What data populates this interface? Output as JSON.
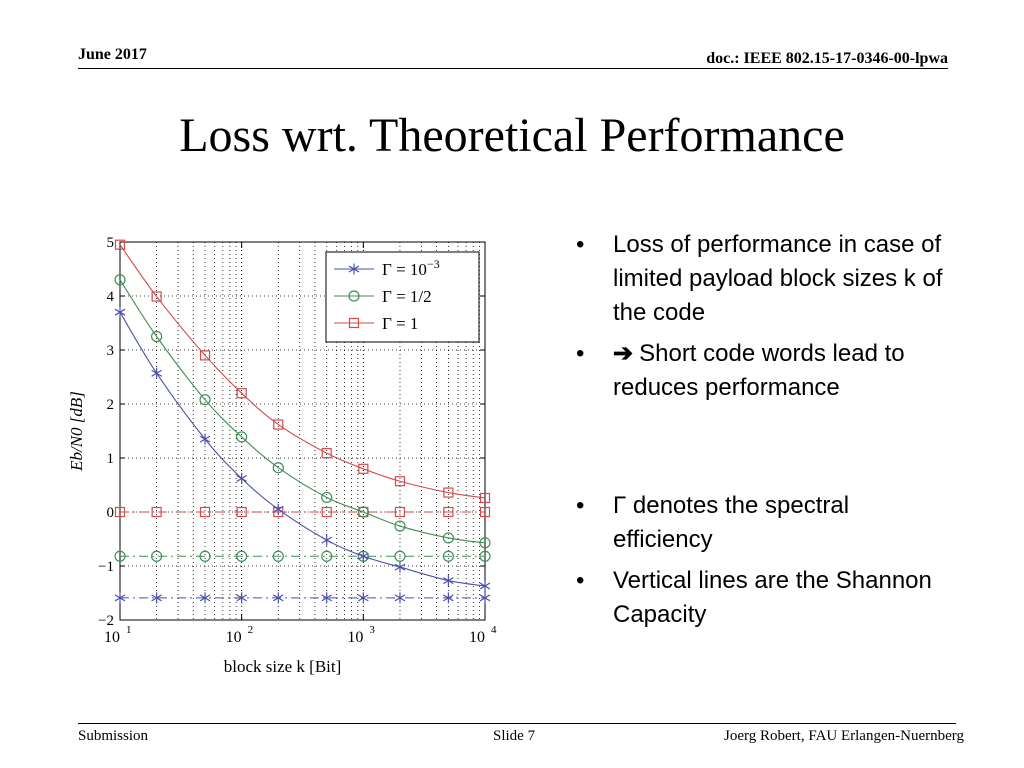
{
  "header": {
    "date": "June 2017",
    "doc": "doc.: IEEE 802.15-17-0346-00-lpwa"
  },
  "slide": {
    "title": "Loss wrt. Theoretical Performance",
    "bullets": [
      {
        "text": "Loss of performance in case of limited payload block sizes k of the code"
      },
      {
        "arrow": "➔",
        "text": "Short code words lead to reduces performance"
      },
      {
        "text": "Γ denotes  the spectral efficiency"
      },
      {
        "text": "Vertical lines are the Shannon Capacity"
      }
    ]
  },
  "footer": {
    "left": "Submission",
    "center": "Slide 7",
    "right": "Joerg Robert, FAU Erlangen-Nuernberg"
  },
  "chart_data": {
    "type": "line",
    "x_scale": "log",
    "x": [
      10,
      20,
      50,
      100,
      200,
      500,
      1000,
      2000,
      5000,
      10000
    ],
    "xlim": [
      10,
      10000
    ],
    "ylim": [
      -2,
      5
    ],
    "xlabel": "block size k [Bit]",
    "ylabel": "Eb/N0 [dB]",
    "x_ticks": [
      {
        "value": 10,
        "base": "10",
        "exp": "1"
      },
      {
        "value": 100,
        "base": "10",
        "exp": "2"
      },
      {
        "value": 1000,
        "base": "10",
        "exp": "3"
      },
      {
        "value": 10000,
        "base": "10",
        "exp": "4"
      }
    ],
    "y_ticks": [
      "−2",
      "−1",
      "0",
      "1",
      "2",
      "3",
      "4",
      "5"
    ],
    "grid": true,
    "legend_position": "top-right",
    "series": [
      {
        "name": "Γ = 10",
        "name_sup": "−3",
        "color": "#4a52a8",
        "marker": "asterisk",
        "values": [
          3.7,
          2.57,
          1.35,
          0.62,
          0.05,
          -0.52,
          -0.82,
          -1.02,
          -1.27,
          -1.37
        ]
      },
      {
        "name": "Γ = 1/2",
        "color": "#3f8f55",
        "marker": "circle",
        "values": [
          4.3,
          3.25,
          2.08,
          1.39,
          0.82,
          0.27,
          0.0,
          -0.26,
          -0.48,
          -0.57
        ]
      },
      {
        "name": "Γ = 1",
        "color": "#d64a4a",
        "marker": "square",
        "values": [
          4.95,
          3.99,
          2.9,
          2.2,
          1.62,
          1.09,
          0.8,
          0.57,
          0.36,
          0.26
        ]
      }
    ],
    "limit_lines": [
      {
        "color": "#4a52a8",
        "marker": "asterisk",
        "value": -1.59
      },
      {
        "color": "#3f8f55",
        "marker": "circle",
        "value": -0.82
      },
      {
        "color": "#d64a4a",
        "marker": "square",
        "value": 0.0
      }
    ]
  }
}
